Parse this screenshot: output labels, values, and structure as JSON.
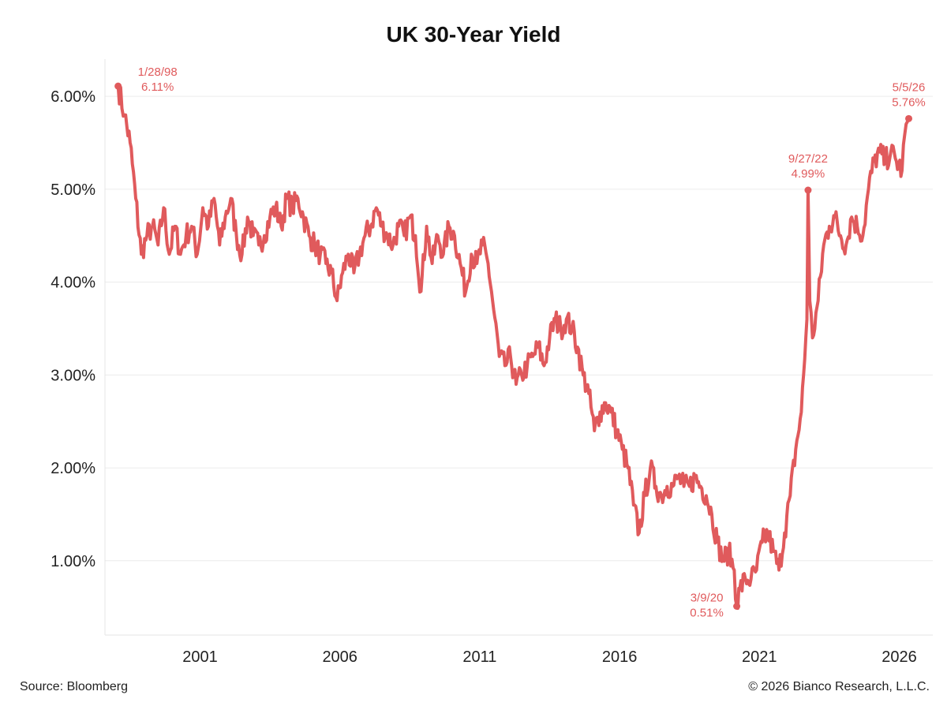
{
  "chart_data": {
    "type": "line",
    "title": "UK 30-Year Yield",
    "xlabel": "",
    "ylabel": "",
    "ylim": [
      0.2,
      6.4
    ],
    "y_ticks": [
      {
        "value": 1.0,
        "label": "1.00%"
      },
      {
        "value": 2.0,
        "label": "2.00%"
      },
      {
        "value": 3.0,
        "label": "3.00%"
      },
      {
        "value": 4.0,
        "label": "4.00%"
      },
      {
        "value": 5.0,
        "label": "5.00%"
      },
      {
        "value": 6.0,
        "label": "6.00%"
      }
    ],
    "xlim": [
      1997.6,
      2027.2
    ],
    "x_ticks": [
      {
        "value": 2001,
        "label": "2001"
      },
      {
        "value": 2006,
        "label": "2006"
      },
      {
        "value": 2011,
        "label": "2011"
      },
      {
        "value": 2016,
        "label": "2016"
      },
      {
        "value": 2021,
        "label": "2021"
      },
      {
        "value": 2026,
        "label": "2026"
      }
    ],
    "grid": true,
    "line_color": "#e05a5c",
    "series": [
      {
        "name": "",
        "x": [
          1998.07,
          1998.3,
          1998.5,
          1998.7,
          1998.9,
          1999.1,
          1999.3,
          1999.5,
          1999.7,
          1999.9,
          2000.1,
          2000.3,
          2000.5,
          2000.7,
          2000.9,
          2001.1,
          2001.3,
          2001.5,
          2001.7,
          2001.9,
          2002.1,
          2002.3,
          2002.5,
          2002.7,
          2002.9,
          2003.1,
          2003.3,
          2003.5,
          2003.7,
          2003.9,
          2004.1,
          2004.3,
          2004.5,
          2004.7,
          2004.9,
          2005.1,
          2005.3,
          2005.5,
          2005.7,
          2005.9,
          2006.1,
          2006.3,
          2006.5,
          2006.7,
          2006.9,
          2007.1,
          2007.3,
          2007.5,
          2007.7,
          2007.9,
          2008.1,
          2008.3,
          2008.5,
          2008.7,
          2008.9,
          2009.1,
          2009.3,
          2009.5,
          2009.7,
          2009.9,
          2010.1,
          2010.3,
          2010.5,
          2010.7,
          2010.9,
          2011.1,
          2011.3,
          2011.5,
          2011.7,
          2011.9,
          2012.1,
          2012.3,
          2012.5,
          2012.7,
          2012.9,
          2013.1,
          2013.3,
          2013.5,
          2013.7,
          2013.9,
          2014.1,
          2014.3,
          2014.5,
          2014.7,
          2014.9,
          2015.1,
          2015.3,
          2015.5,
          2015.7,
          2015.9,
          2016.1,
          2016.3,
          2016.5,
          2016.7,
          2016.9,
          2017.1,
          2017.3,
          2017.5,
          2017.7,
          2017.9,
          2018.1,
          2018.3,
          2018.5,
          2018.7,
          2018.9,
          2019.1,
          2019.3,
          2019.5,
          2019.7,
          2019.9,
          2020.1,
          2020.19,
          2020.3,
          2020.5,
          2020.7,
          2020.9,
          2021.1,
          2021.3,
          2021.5,
          2021.7,
          2021.9,
          2022.1,
          2022.3,
          2022.5,
          2022.7,
          2022.74,
          2022.8,
          2022.9,
          2023.1,
          2023.3,
          2023.5,
          2023.7,
          2023.9,
          2024.1,
          2024.3,
          2024.5,
          2024.7,
          2024.9,
          2025.1,
          2025.3,
          2025.5,
          2025.7,
          2025.9,
          2026.1,
          2026.2,
          2026.34
        ],
        "y": [
          6.11,
          5.8,
          5.5,
          4.9,
          4.3,
          4.5,
          4.6,
          4.4,
          4.8,
          4.3,
          4.6,
          4.3,
          4.5,
          4.6,
          4.3,
          4.8,
          4.6,
          4.9,
          4.4,
          4.7,
          4.9,
          4.5,
          4.3,
          4.7,
          4.5,
          4.4,
          4.5,
          4.7,
          4.8,
          4.6,
          4.9,
          4.8,
          4.9,
          4.7,
          4.5,
          4.4,
          4.3,
          4.2,
          4.1,
          3.8,
          4.1,
          4.3,
          4.1,
          4.3,
          4.5,
          4.6,
          4.8,
          4.6,
          4.5,
          4.4,
          4.6,
          4.5,
          4.7,
          4.5,
          3.9,
          4.6,
          4.2,
          4.5,
          4.3,
          4.6,
          4.5,
          4.2,
          3.9,
          4.3,
          4.2,
          4.4,
          4.2,
          3.7,
          3.2,
          3.1,
          3.2,
          2.9,
          3.0,
          3.1,
          3.2,
          3.3,
          3.1,
          3.4,
          3.6,
          3.5,
          3.6,
          3.5,
          3.3,
          3.0,
          2.8,
          2.4,
          2.6,
          2.7,
          2.6,
          2.4,
          2.2,
          2.0,
          1.6,
          1.3,
          1.7,
          2.0,
          1.8,
          1.7,
          1.8,
          1.8,
          1.9,
          1.8,
          1.8,
          1.9,
          1.8,
          1.7,
          1.5,
          1.2,
          1.0,
          1.1,
          0.9,
          0.51,
          0.7,
          0.8,
          0.8,
          0.9,
          1.2,
          1.3,
          1.1,
          0.9,
          1.3,
          1.7,
          2.2,
          2.6,
          3.6,
          4.99,
          3.8,
          3.4,
          3.8,
          4.4,
          4.6,
          4.7,
          4.5,
          4.4,
          4.7,
          4.6,
          4.5,
          5.0,
          5.3,
          5.4,
          5.3,
          5.4,
          5.3,
          5.2,
          5.6,
          5.76
        ]
      }
    ],
    "annotations": [
      {
        "x": 1998.07,
        "y": 6.11,
        "date": "1/28/98",
        "value": "6.11%",
        "position": "right"
      },
      {
        "x": 2020.19,
        "y": 0.51,
        "date": "3/9/20",
        "value": "0.51%",
        "position": "left"
      },
      {
        "x": 2022.74,
        "y": 4.99,
        "date": "9/27/22",
        "value": "4.99%",
        "position": "above"
      },
      {
        "x": 2026.34,
        "y": 5.76,
        "date": "5/5/26",
        "value": "5.76%",
        "position": "above"
      }
    ]
  },
  "footer": {
    "source": "Source: Bloomberg",
    "copyright": "© 2026 Bianco Research, L.L.C."
  }
}
